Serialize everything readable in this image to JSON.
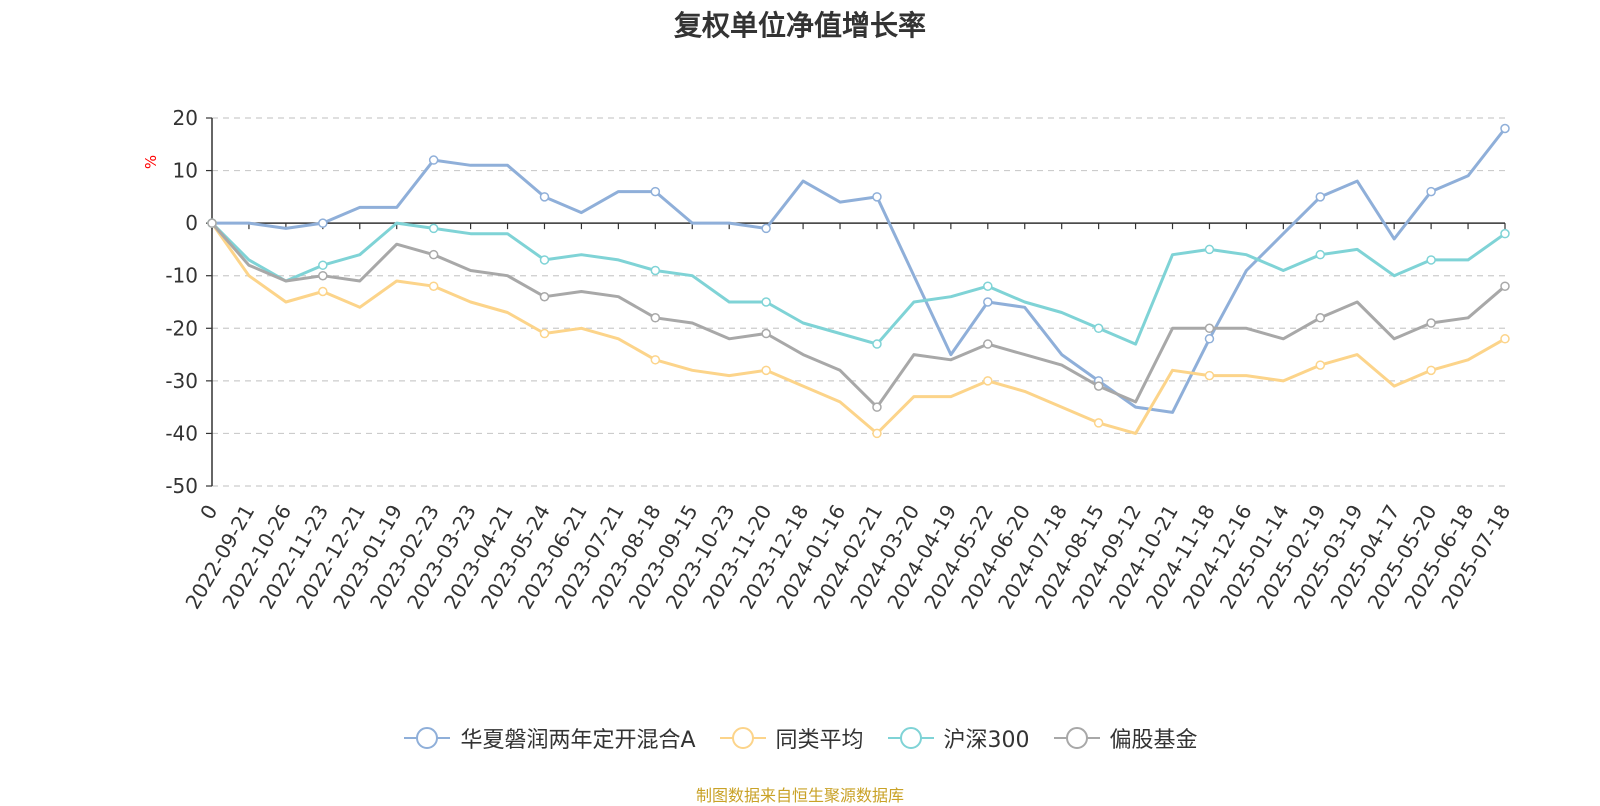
{
  "chart_data": {
    "type": "line",
    "title": "复权单位净值增长率",
    "ylabel": "%",
    "xlabel": "",
    "ylim": [
      -50,
      20
    ],
    "yticks": [
      20,
      10,
      0,
      -10,
      -20,
      -30,
      -40,
      -50
    ],
    "x_tick_labels": [
      "0",
      "2022-09-21",
      "2022-10-26",
      "2022-11-23",
      "2022-12-21",
      "2023-01-19",
      "2023-02-23",
      "2023-03-23",
      "2023-04-21",
      "2023-05-24",
      "2023-06-21",
      "2023-07-21",
      "2023-08-18",
      "2023-09-15",
      "2023-10-23",
      "2023-11-20",
      "2023-12-18",
      "2024-01-16",
      "2024-02-21",
      "2024-03-20",
      "2024-04-19",
      "2024-05-22",
      "2024-06-20",
      "2024-07-18",
      "2024-08-15",
      "2024-09-12",
      "2024-10-21",
      "2024-11-18",
      "2024-12-16",
      "2025-01-14",
      "2025-02-19",
      "2025-03-19",
      "2025-04-17",
      "2025-05-20",
      "2025-06-18",
      "2025-07-18"
    ],
    "grid": true,
    "legend_position": "bottom",
    "series": [
      {
        "name": "华夏磐润两年定开混合A",
        "color": "#8fafd9",
        "values": [
          0,
          0,
          -1,
          0,
          3,
          3,
          12,
          11,
          11,
          5,
          2,
          6,
          6,
          0,
          0,
          -1,
          8,
          4,
          5,
          -10,
          -25,
          -15,
          -16,
          -25,
          -30,
          -35,
          -36,
          -22,
          -9,
          -2,
          5,
          8,
          -3,
          6,
          9,
          18
        ]
      },
      {
        "name": "同类平均",
        "color": "#fcd48a",
        "values": [
          0,
          -10,
          -15,
          -13,
          -16,
          -11,
          -12,
          -15,
          -17,
          -21,
          -20,
          -22,
          -26,
          -28,
          -29,
          -28,
          -31,
          -34,
          -40,
          -33,
          -33,
          -30,
          -32,
          -35,
          -38,
          -40,
          -28,
          -29,
          -29,
          -30,
          -27,
          -25,
          -31,
          -28,
          -26,
          -22
        ]
      },
      {
        "name": "沪深300",
        "color": "#7fd3d6",
        "values": [
          0,
          -7,
          -11,
          -8,
          -6,
          0,
          -1,
          -2,
          -2,
          -7,
          -6,
          -7,
          -9,
          -10,
          -15,
          -15,
          -19,
          -21,
          -23,
          -15,
          -14,
          -12,
          -15,
          -17,
          -20,
          -23,
          -6,
          -5,
          -6,
          -9,
          -6,
          -5,
          -10,
          -7,
          -7,
          -2
        ]
      },
      {
        "name": "偏股基金",
        "color": "#a8a8a8",
        "values": [
          0,
          -8,
          -11,
          -10,
          -11,
          -4,
          -6,
          -9,
          -10,
          -14,
          -13,
          -14,
          -18,
          -19,
          -22,
          -21,
          -25,
          -28,
          -35,
          -25,
          -26,
          -23,
          -25,
          -27,
          -31,
          -34,
          -20,
          -20,
          -20,
          -22,
          -18,
          -15,
          -22,
          -19,
          -18,
          -12
        ]
      }
    ]
  },
  "source_note": "制图数据来自恒生聚源数据库"
}
